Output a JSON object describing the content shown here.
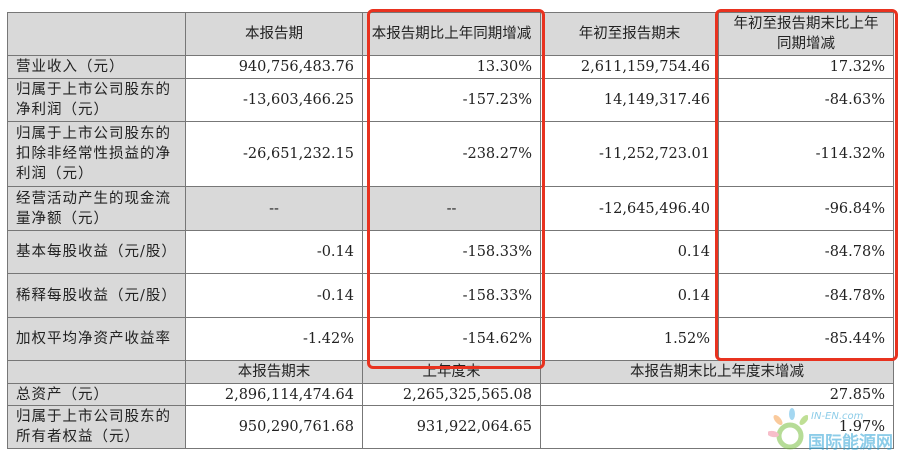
{
  "header": {
    "blank": "",
    "col1": "本报告期",
    "col2": "本报告期比上年同期增减",
    "col3": "年初至报告期末",
    "col4": "年初至报告期末比上年同期增减"
  },
  "rows": [
    {
      "label": "营业收入（元）",
      "v1": "940,756,483.76",
      "v2": "13.30%",
      "v3": "2,611,159,754.46",
      "v4": "17.32%"
    },
    {
      "label": "归属于上市公司股东的净利润（元）",
      "v1": "-13,603,466.25",
      "v2": "-157.23%",
      "v3": "14,149,317.46",
      "v4": "-84.63%"
    },
    {
      "label": "归属于上市公司股东的扣除非经常性损益的净利润（元）",
      "v1": "-26,651,232.15",
      "v2": "-238.27%",
      "v3": "-11,252,723.01",
      "v4": "-114.32%"
    },
    {
      "label": "经营活动产生的现金流量净额（元）",
      "v1": "--",
      "v2": "--",
      "v3": "-12,645,496.40",
      "v4": "-96.84%"
    },
    {
      "label": "基本每股收益（元/股）",
      "v1": "-0.14",
      "v2": "-158.33%",
      "v3": "0.14",
      "v4": "-84.78%"
    },
    {
      "label": "稀释每股收益（元/股）",
      "v1": "-0.14",
      "v2": "-158.33%",
      "v3": "0.14",
      "v4": "-84.78%"
    },
    {
      "label": "加权平均净资产收益率",
      "v1": "-1.42%",
      "v2": "-154.62%",
      "v3": "1.52%",
      "v4": "-85.44%"
    }
  ],
  "header2": {
    "blank": "",
    "col1": "本报告期末",
    "col2": "上年度末",
    "col3": "本报告期末比上年度末增减"
  },
  "rows2": [
    {
      "label": "总资产（元）",
      "v1": "2,896,114,474.64",
      "v2": "2,265,325,565.08",
      "v3": "27.85%"
    },
    {
      "label": "归属于上市公司股东的所有者权益（元）",
      "v1": "950,290,761.68",
      "v2": "931,922,064.65",
      "v3": "1.97%"
    }
  ],
  "highlight_color": "#e8321f",
  "watermark": {
    "text": "国际能源网",
    "sub": "IN-EN.com"
  }
}
